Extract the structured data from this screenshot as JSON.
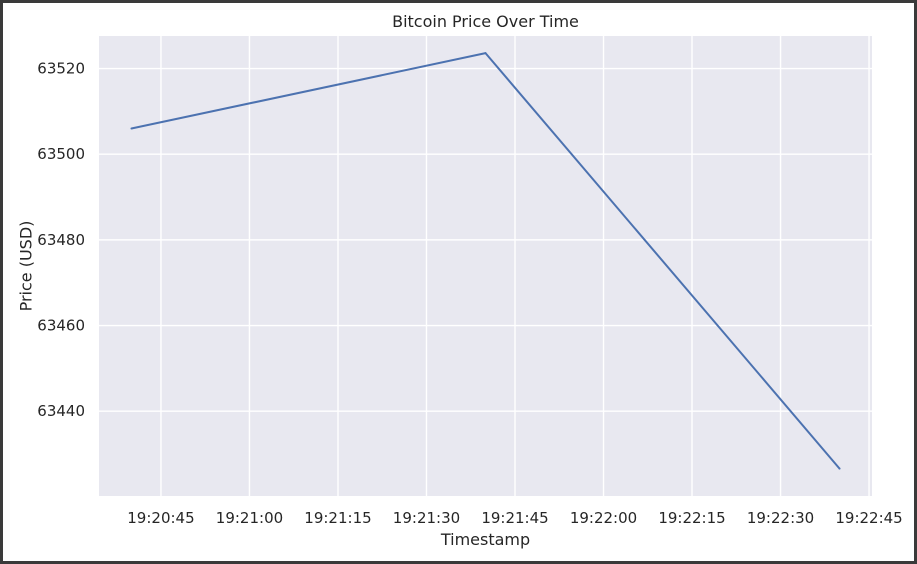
{
  "chart_data": {
    "type": "line",
    "title": "Bitcoin Price Over Time",
    "xlabel": "Timestamp",
    "ylabel": "Price (USD)",
    "x_ticks": [
      "19:20:45",
      "19:21:00",
      "19:21:15",
      "19:21:30",
      "19:21:45",
      "19:22:00",
      "19:22:15",
      "19:22:30",
      "19:22:45"
    ],
    "y_ticks": [
      63440,
      63460,
      63480,
      63500,
      63520
    ],
    "x": [
      "19:20:40",
      "19:21:40",
      "19:22:40"
    ],
    "y": [
      63506,
      63523.6,
      63426.6
    ],
    "xlim": [
      "19:20:34.5",
      "19:22:45.5"
    ],
    "ylim": [
      63420.2,
      63527.6
    ],
    "grid": true,
    "colors": {
      "plot_background": "#e8e8f0",
      "grid": "#ffffff",
      "line": "#4c72b0"
    }
  }
}
